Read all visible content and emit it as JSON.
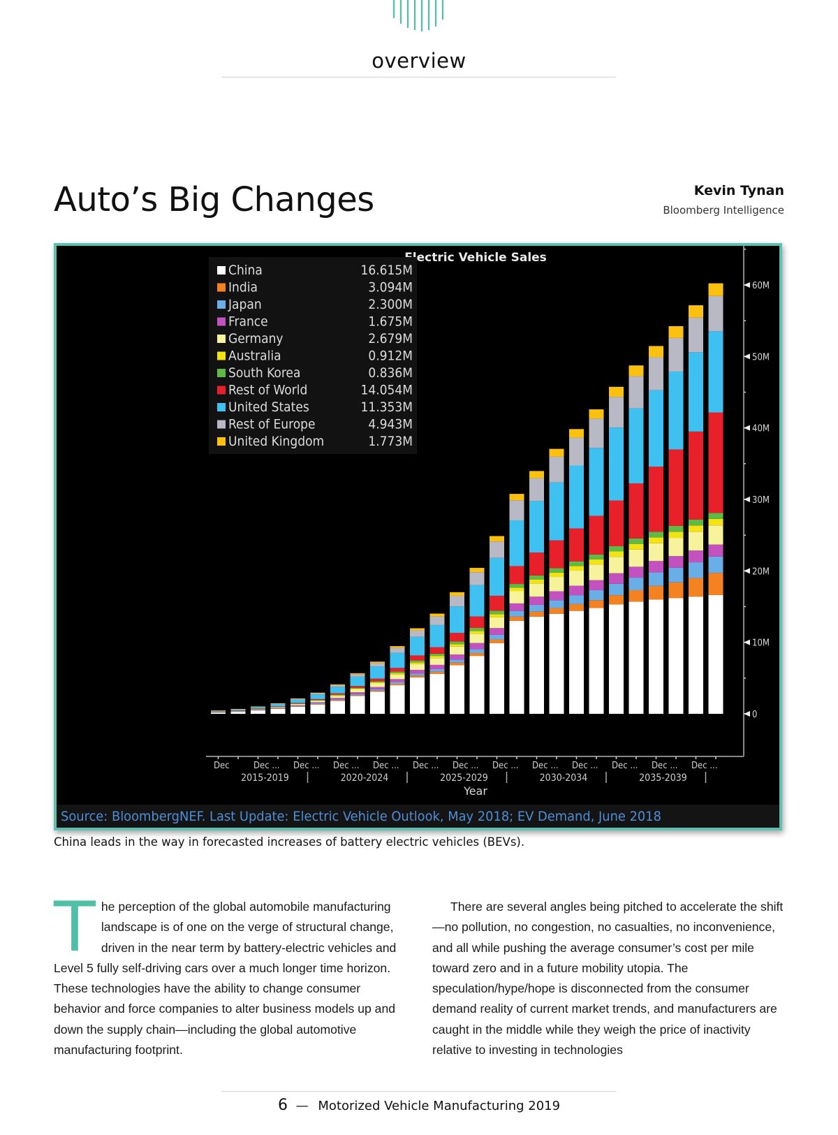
{
  "header": {
    "section_label": "overview"
  },
  "article": {
    "title": "Auto’s Big Changes",
    "author_name": "Kevin Tynan",
    "author_org": "Bloomberg Intelligence",
    "caption": "China leads in the way in forecasted increases of battery electric vehicles (BEVs).",
    "dropcap": "T",
    "left_column_text": "he perception of the global automobile manufacturing landscape is of one on the verge of structural change, driven in the near term by battery-electric vehicles and Level 5 fully self-driving cars over a much longer time horizon. These technologies have the ability to change consumer behavior and force companies to alter business models up and down the supply chain—including the global automotive manufacturing footprint.",
    "right_column_text": "There are several angles being pitched to accelerate the shift—no pollution, no congestion, no casualties, no inconvenience, and all while pushing the average consumer’s cost per mile toward zero and in a future mobility utopia. The speculation/hype/hope is disconnected from the consumer demand reality of current market trends, and manufacturers are caught in the middle while they weigh the price of inactivity relative to investing in technologies"
  },
  "footer": {
    "page_number": "6",
    "separator": "—",
    "publication": "Motorized Vehicle Manufacturing 2019"
  },
  "colors": {
    "accent": "#4fbfa8",
    "chart_background": "#000000",
    "source_text": "#4d8fd6"
  },
  "chart_data": {
    "type": "bar",
    "stacked": true,
    "title": "Electric Vehicle Sales",
    "xlabel": "Year",
    "ylabel": "",
    "ylim": [
      0,
      65
    ],
    "y_unit": "M",
    "yticks": [
      0,
      10,
      20,
      30,
      40,
      50,
      60
    ],
    "ytick_labels": [
      "0",
      "10M",
      "20M",
      "30M",
      "40M",
      "50M",
      "60M"
    ],
    "y_axis_position": "right",
    "grid": false,
    "legend_position": "top-left",
    "x": [
      2015,
      2016,
      2017,
      2018,
      2019,
      2020,
      2021,
      2022,
      2023,
      2024,
      2025,
      2026,
      2027,
      2028,
      2029,
      2030,
      2031,
      2032,
      2033,
      2034,
      2035,
      2036,
      2037,
      2038,
      2039,
      2040
    ],
    "xtick_labels": [
      "Dec",
      "Dec ...",
      "Dec ...",
      "Dec ...",
      "Dec ...",
      "Dec ...",
      "Dec ...",
      "Dec ...",
      "Dec ...",
      "Dec ...",
      "Dec ...",
      "Dec ...",
      "Dec ..."
    ],
    "x_group_labels": [
      "2015-2019",
      "2020-2024",
      "2025-2029",
      "2030-2034",
      "2035-2039"
    ],
    "source": "Source: BloombergNEF. Last Update: Electric Vehicle Outlook, May 2018; EV Demand, June 2018",
    "series": [
      {
        "name": "China",
        "legend_value": "16.615M",
        "color": "#ffffff",
        "values": [
          0.2,
          0.3,
          0.5,
          0.7,
          1.0,
          1.3,
          1.8,
          2.5,
          3.1,
          4.0,
          5.1,
          5.6,
          6.8,
          8.1,
          9.9,
          13.0,
          13.6,
          14.0,
          14.4,
          14.8,
          15.3,
          15.7,
          16.0,
          16.2,
          16.4,
          16.615
        ]
      },
      {
        "name": "India",
        "legend_value": "3.094M",
        "color": "#f58220",
        "values": [
          0.0,
          0.01,
          0.02,
          0.03,
          0.05,
          0.07,
          0.1,
          0.12,
          0.15,
          0.2,
          0.25,
          0.3,
          0.35,
          0.4,
          0.5,
          0.6,
          0.7,
          0.8,
          0.95,
          1.1,
          1.3,
          1.6,
          1.9,
          2.2,
          2.6,
          3.094
        ]
      },
      {
        "name": "Japan",
        "legend_value": "2.300M",
        "color": "#6aaee8",
        "values": [
          0.02,
          0.03,
          0.04,
          0.05,
          0.07,
          0.1,
          0.12,
          0.15,
          0.2,
          0.25,
          0.3,
          0.35,
          0.45,
          0.55,
          0.65,
          0.8,
          0.95,
          1.1,
          1.25,
          1.4,
          1.6,
          1.75,
          1.9,
          2.05,
          2.2,
          2.3
        ]
      },
      {
        "name": "France",
        "legend_value": "1.675M",
        "color": "#c352c0",
        "values": [
          0.03,
          0.04,
          0.06,
          0.08,
          0.1,
          0.15,
          0.2,
          0.25,
          0.3,
          0.4,
          0.5,
          0.6,
          0.7,
          0.85,
          0.95,
          1.05,
          1.15,
          1.25,
          1.33,
          1.4,
          1.47,
          1.53,
          1.58,
          1.62,
          1.65,
          1.675
        ]
      },
      {
        "name": "Germany",
        "legend_value": "2.679M",
        "color": "#f7f29c",
        "values": [
          0.03,
          0.05,
          0.07,
          0.1,
          0.15,
          0.2,
          0.3,
          0.4,
          0.5,
          0.65,
          0.8,
          0.95,
          1.1,
          1.3,
          1.5,
          1.7,
          1.85,
          2.0,
          2.1,
          2.2,
          2.3,
          2.4,
          2.48,
          2.55,
          2.62,
          2.679
        ]
      },
      {
        "name": "Australia",
        "legend_value": "0.912M",
        "color": "#f4e312",
        "values": [
          0.0,
          0.005,
          0.01,
          0.02,
          0.03,
          0.05,
          0.08,
          0.1,
          0.15,
          0.2,
          0.25,
          0.3,
          0.35,
          0.4,
          0.45,
          0.5,
          0.55,
          0.6,
          0.65,
          0.7,
          0.75,
          0.8,
          0.83,
          0.86,
          0.89,
          0.912
        ]
      },
      {
        "name": "South Korea",
        "legend_value": "0.836M",
        "color": "#5fba46",
        "values": [
          0.01,
          0.01,
          0.02,
          0.03,
          0.05,
          0.07,
          0.1,
          0.13,
          0.17,
          0.22,
          0.27,
          0.32,
          0.37,
          0.42,
          0.47,
          0.52,
          0.57,
          0.62,
          0.66,
          0.7,
          0.73,
          0.76,
          0.79,
          0.81,
          0.83,
          0.836
        ]
      },
      {
        "name": "Rest of World",
        "legend_value": "14.054M",
        "color": "#e8202a",
        "values": [
          0.01,
          0.02,
          0.03,
          0.05,
          0.08,
          0.12,
          0.18,
          0.25,
          0.35,
          0.5,
          0.7,
          0.9,
          1.2,
          1.6,
          2.1,
          2.5,
          3.2,
          3.9,
          4.6,
          5.4,
          6.4,
          7.7,
          9.1,
          10.7,
          12.3,
          14.054
        ]
      },
      {
        "name": "United States",
        "legend_value": "11.353M",
        "color": "#3ec0f0",
        "values": [
          0.12,
          0.16,
          0.2,
          0.3,
          0.45,
          0.65,
          0.9,
          1.3,
          1.7,
          2.1,
          2.6,
          3.1,
          3.7,
          4.4,
          5.3,
          6.4,
          7.2,
          8.1,
          8.8,
          9.5,
          10.2,
          10.5,
          10.7,
          10.9,
          11.1,
          11.353
        ]
      },
      {
        "name": "Rest of Europe",
        "legend_value": "4.943M",
        "color": "#b9b9c6",
        "values": [
          0.03,
          0.04,
          0.06,
          0.08,
          0.12,
          0.18,
          0.25,
          0.35,
          0.5,
          0.7,
          0.9,
          1.2,
          1.5,
          1.8,
          2.3,
          2.8,
          3.2,
          3.6,
          3.9,
          4.1,
          4.3,
          4.5,
          4.6,
          4.7,
          4.85,
          4.943
        ]
      },
      {
        "name": "United Kingdom",
        "legend_value": "1.773M",
        "color": "#fcc10f",
        "values": [
          0.01,
          0.01,
          0.02,
          0.03,
          0.05,
          0.07,
          0.1,
          0.13,
          0.18,
          0.25,
          0.3,
          0.4,
          0.5,
          0.6,
          0.75,
          0.9,
          1.0,
          1.1,
          1.2,
          1.3,
          1.4,
          1.5,
          1.58,
          1.65,
          1.72,
          1.773
        ]
      }
    ]
  }
}
